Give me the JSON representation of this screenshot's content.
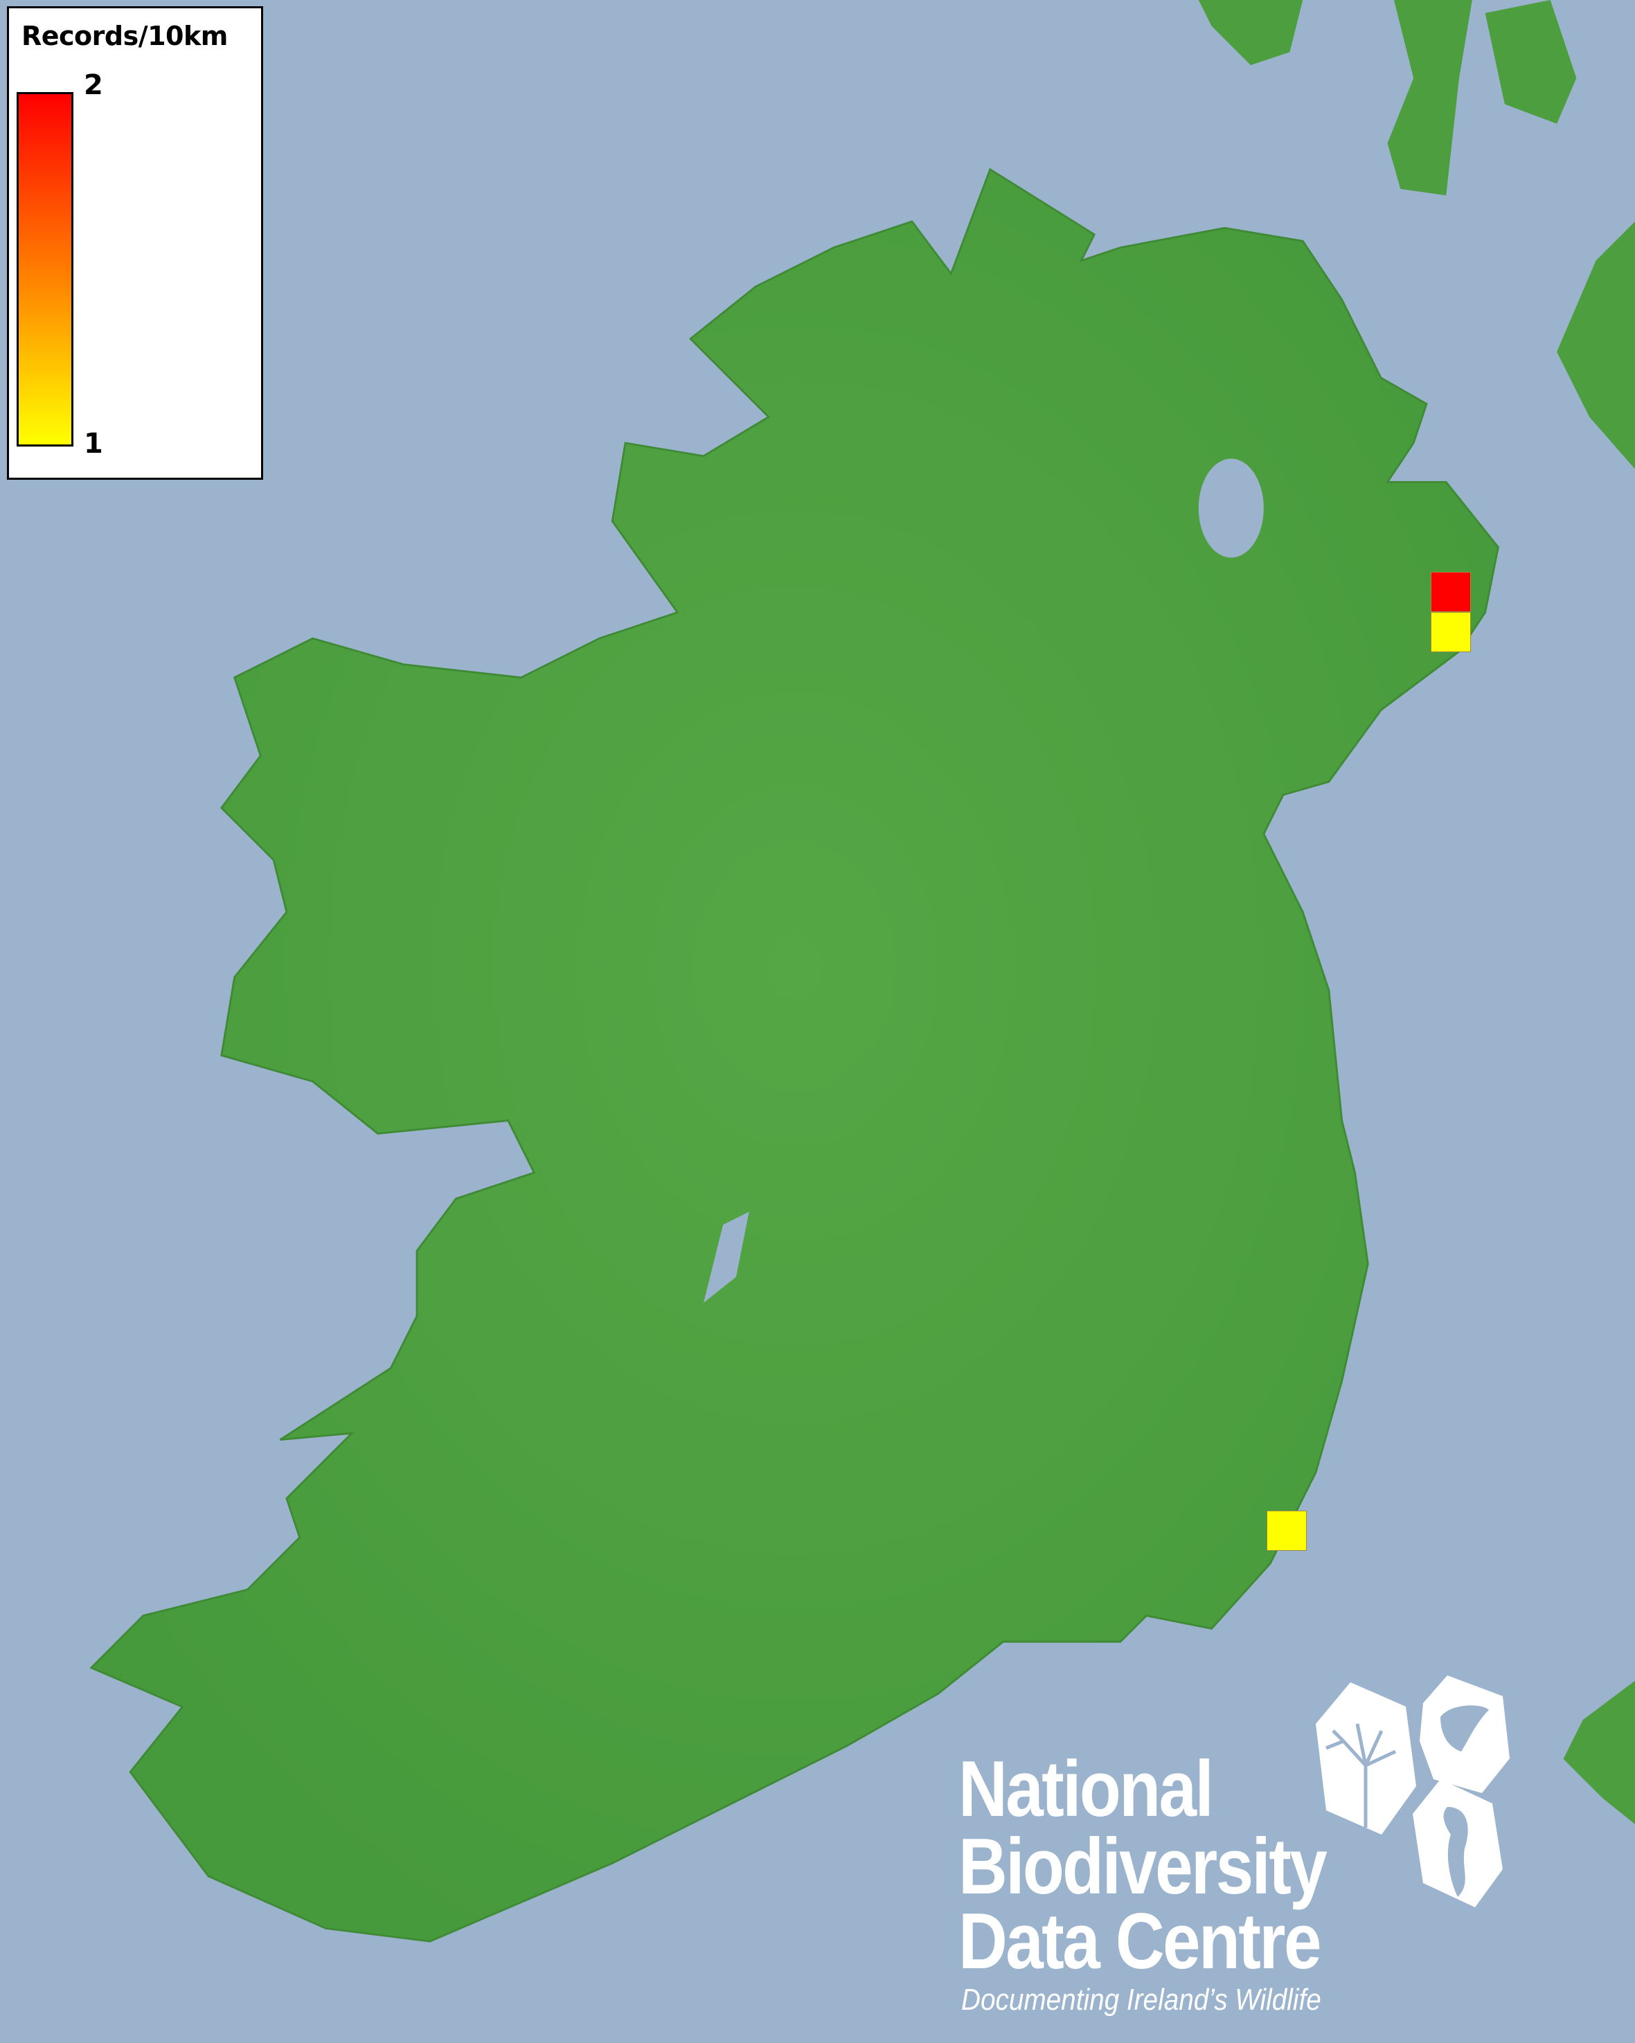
{
  "legend": {
    "title": "Records/10km",
    "max_label": "2",
    "min_label": "1",
    "gradient_colors": [
      "#ff0000",
      "#ff8800",
      "#ffff00"
    ]
  },
  "map": {
    "sea_color": "#9bb3cc",
    "land_color": "#4c9e3e",
    "records": [
      {
        "value": 2,
        "color": "#ff0000"
      },
      {
        "value": 1,
        "color": "#ffff00"
      },
      {
        "value": 1,
        "color": "#ffff00"
      }
    ]
  },
  "logo": {
    "line1": "National",
    "line2": "Biodiversity",
    "line3": "Data Centre",
    "tagline": "Documenting Ireland’s Wildlife",
    "icons": [
      "tree-icon",
      "butterfly-icon",
      "seahorse-icon"
    ]
  }
}
